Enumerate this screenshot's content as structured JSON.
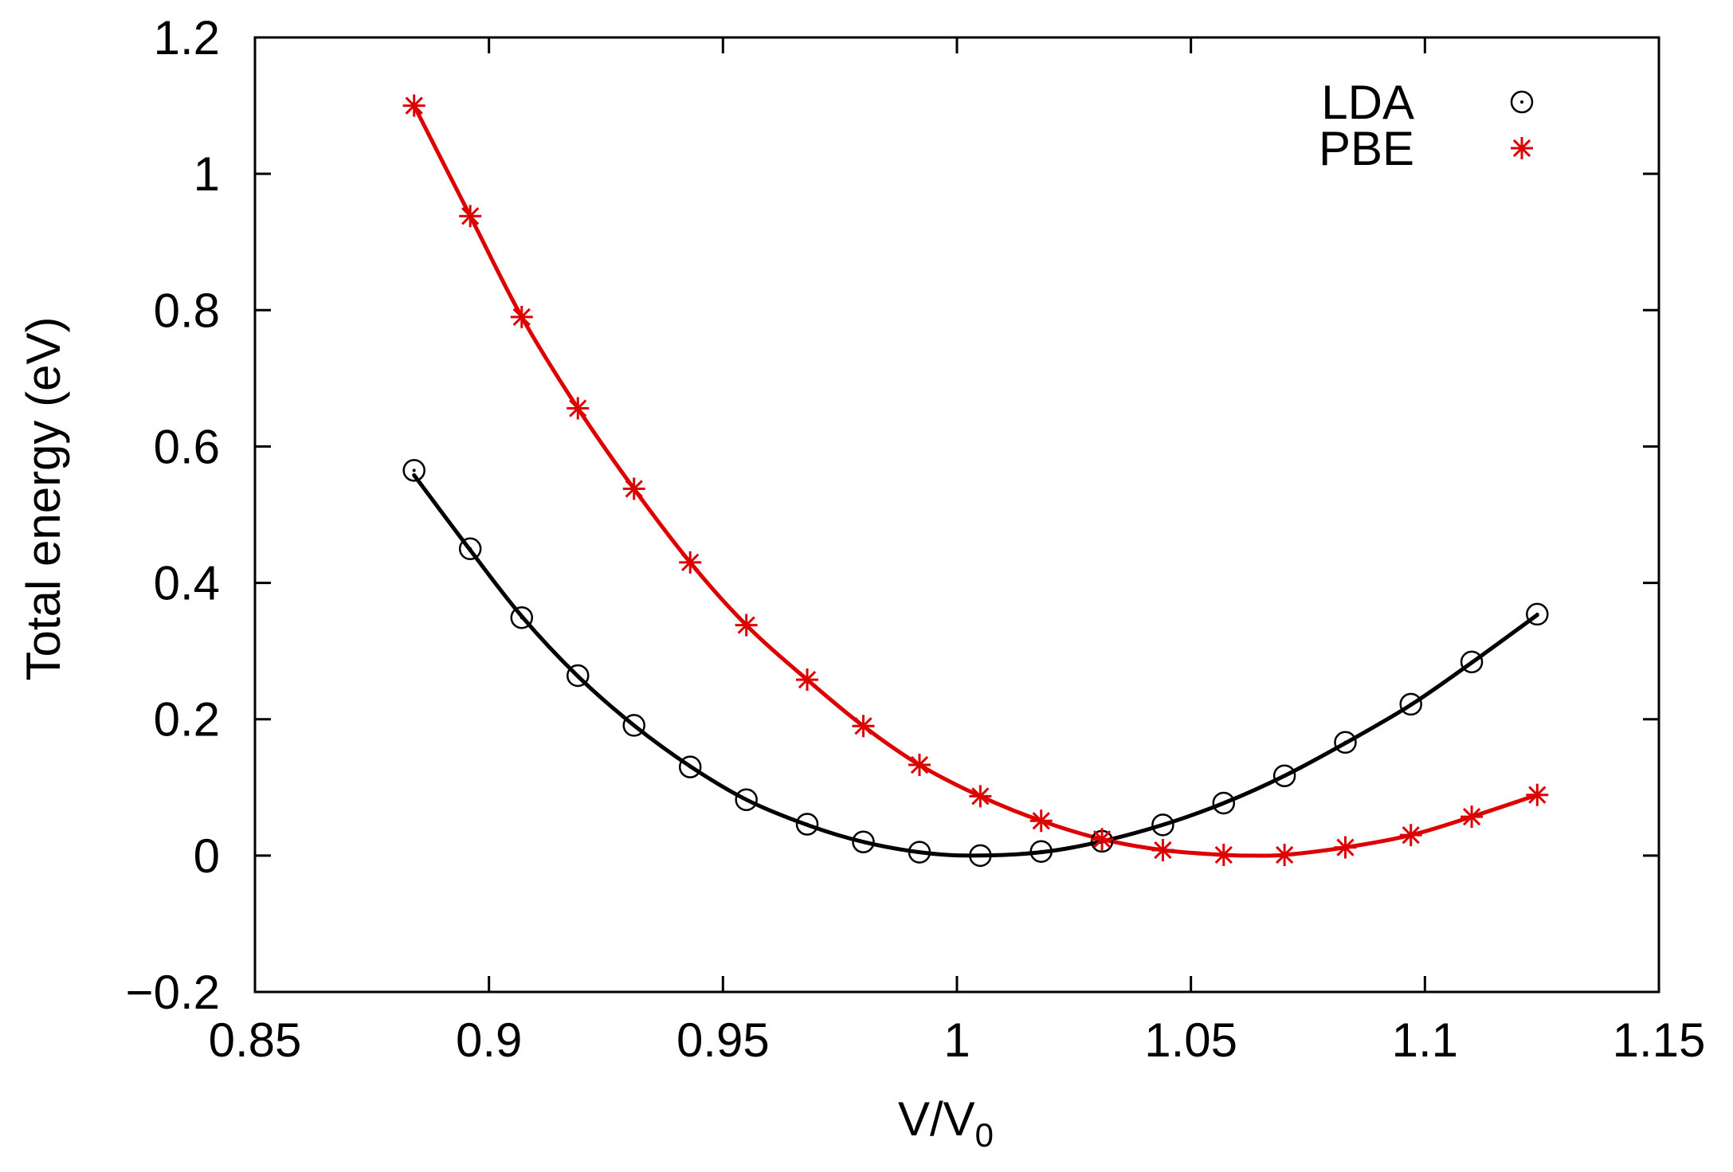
{
  "chart_data": {
    "type": "scatter",
    "title": "",
    "xlabel": "V/V",
    "xlabel_subscript": "0",
    "ylabel": "Total energy (eV)",
    "xlim": [
      0.85,
      1.15
    ],
    "ylim": [
      -0.2,
      1.2
    ],
    "xticks": [
      {
        "value": 0.85,
        "label": "0.85"
      },
      {
        "value": 0.9,
        "label": "0.9"
      },
      {
        "value": 0.95,
        "label": "0.95"
      },
      {
        "value": 1.0,
        "label": "1"
      },
      {
        "value": 1.05,
        "label": "1.05"
      },
      {
        "value": 1.1,
        "label": "1.1"
      },
      {
        "value": 1.15,
        "label": "1.15"
      }
    ],
    "yticks": [
      {
        "value": -0.2,
        "label": "−0.2"
      },
      {
        "value": 0,
        "label": "0"
      },
      {
        "value": 0.2,
        "label": "0.2"
      },
      {
        "value": 0.4,
        "label": "0.4"
      },
      {
        "value": 0.6,
        "label": "0.6"
      },
      {
        "value": 0.8,
        "label": "0.8"
      },
      {
        "value": 1.0,
        "label": "1"
      },
      {
        "value": 1.2,
        "label": "1.2"
      }
    ],
    "grid": false,
    "legend_position": "top-right",
    "series": [
      {
        "name": "LDA",
        "color": "#000000",
        "marker": "circle-dot",
        "points": [
          {
            "x": 0.884,
            "y": 0.565
          },
          {
            "x": 0.896,
            "y": 0.45
          },
          {
            "x": 0.907,
            "y": 0.349
          },
          {
            "x": 0.919,
            "y": 0.264
          },
          {
            "x": 0.931,
            "y": 0.191
          },
          {
            "x": 0.943,
            "y": 0.13
          },
          {
            "x": 0.955,
            "y": 0.082
          },
          {
            "x": 0.968,
            "y": 0.046
          },
          {
            "x": 0.98,
            "y": 0.02
          },
          {
            "x": 0.992,
            "y": 0.005
          },
          {
            "x": 1.005,
            "y": 0.0
          },
          {
            "x": 1.018,
            "y": 0.006
          },
          {
            "x": 1.031,
            "y": 0.021
          },
          {
            "x": 1.044,
            "y": 0.045
          },
          {
            "x": 1.057,
            "y": 0.077
          },
          {
            "x": 1.07,
            "y": 0.117
          },
          {
            "x": 1.083,
            "y": 0.166
          },
          {
            "x": 1.097,
            "y": 0.222
          },
          {
            "x": 1.11,
            "y": 0.284
          },
          {
            "x": 1.124,
            "y": 0.354
          }
        ],
        "fit": [
          {
            "x": 0.884,
            "y": 0.558
          },
          {
            "x": 0.896,
            "y": 0.448
          },
          {
            "x": 0.907,
            "y": 0.351
          },
          {
            "x": 0.919,
            "y": 0.263
          },
          {
            "x": 0.931,
            "y": 0.191
          },
          {
            "x": 0.943,
            "y": 0.131
          },
          {
            "x": 0.955,
            "y": 0.082
          },
          {
            "x": 0.968,
            "y": 0.045
          },
          {
            "x": 0.98,
            "y": 0.02
          },
          {
            "x": 0.992,
            "y": 0.005
          },
          {
            "x": 1.003,
            "y": 0.0
          },
          {
            "x": 1.018,
            "y": 0.005
          },
          {
            "x": 1.031,
            "y": 0.021
          },
          {
            "x": 1.044,
            "y": 0.045
          },
          {
            "x": 1.057,
            "y": 0.077
          },
          {
            "x": 1.07,
            "y": 0.117
          },
          {
            "x": 1.083,
            "y": 0.165
          },
          {
            "x": 1.097,
            "y": 0.221
          },
          {
            "x": 1.11,
            "y": 0.283
          },
          {
            "x": 1.124,
            "y": 0.353
          }
        ]
      },
      {
        "name": "PBE",
        "color": "#dd0000",
        "marker": "asterisk",
        "points": [
          {
            "x": 0.884,
            "y": 1.1
          },
          {
            "x": 0.896,
            "y": 0.938
          },
          {
            "x": 0.907,
            "y": 0.79
          },
          {
            "x": 0.919,
            "y": 0.656
          },
          {
            "x": 0.931,
            "y": 0.538
          },
          {
            "x": 0.943,
            "y": 0.43
          },
          {
            "x": 0.955,
            "y": 0.338
          },
          {
            "x": 0.968,
            "y": 0.258
          },
          {
            "x": 0.98,
            "y": 0.19
          },
          {
            "x": 0.992,
            "y": 0.133
          },
          {
            "x": 1.005,
            "y": 0.087
          },
          {
            "x": 1.018,
            "y": 0.051
          },
          {
            "x": 1.031,
            "y": 0.024
          },
          {
            "x": 1.044,
            "y": 0.008
          },
          {
            "x": 1.057,
            "y": 0.001
          },
          {
            "x": 1.07,
            "y": 0.001
          },
          {
            "x": 1.083,
            "y": 0.012
          },
          {
            "x": 1.097,
            "y": 0.03
          },
          {
            "x": 1.11,
            "y": 0.057
          },
          {
            "x": 1.124,
            "y": 0.089
          }
        ],
        "fit": [
          {
            "x": 0.884,
            "y": 1.1
          },
          {
            "x": 0.896,
            "y": 0.938
          },
          {
            "x": 0.907,
            "y": 0.79
          },
          {
            "x": 0.919,
            "y": 0.656
          },
          {
            "x": 0.931,
            "y": 0.538
          },
          {
            "x": 0.943,
            "y": 0.43
          },
          {
            "x": 0.955,
            "y": 0.338
          },
          {
            "x": 0.968,
            "y": 0.258
          },
          {
            "x": 0.98,
            "y": 0.19
          },
          {
            "x": 0.992,
            "y": 0.133
          },
          {
            "x": 1.005,
            "y": 0.087
          },
          {
            "x": 1.018,
            "y": 0.051
          },
          {
            "x": 1.031,
            "y": 0.024
          },
          {
            "x": 1.044,
            "y": 0.008
          },
          {
            "x": 1.057,
            "y": 0.001
          },
          {
            "x": 1.063,
            "y": 0.0
          },
          {
            "x": 1.07,
            "y": 0.001
          },
          {
            "x": 1.083,
            "y": 0.012
          },
          {
            "x": 1.097,
            "y": 0.03
          },
          {
            "x": 1.11,
            "y": 0.057
          },
          {
            "x": 1.124,
            "y": 0.089
          }
        ]
      }
    ]
  }
}
